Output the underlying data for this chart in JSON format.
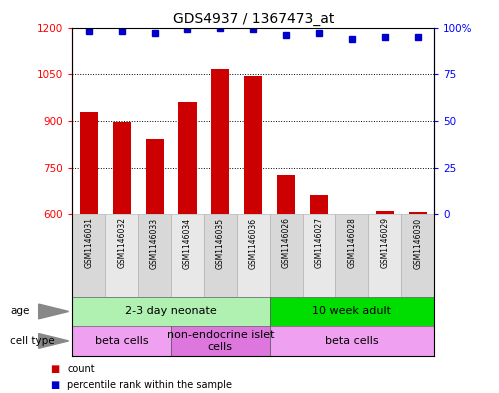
{
  "title": "GDS4937 / 1367473_at",
  "samples": [
    "GSM1146031",
    "GSM1146032",
    "GSM1146033",
    "GSM1146034",
    "GSM1146035",
    "GSM1146036",
    "GSM1146026",
    "GSM1146027",
    "GSM1146028",
    "GSM1146029",
    "GSM1146030"
  ],
  "counts": [
    930,
    897,
    843,
    960,
    1068,
    1043,
    725,
    663,
    600,
    610,
    608
  ],
  "percentiles": [
    98,
    98,
    97,
    99,
    100,
    99,
    96,
    97,
    94,
    95,
    95
  ],
  "ylim_left": [
    600,
    1200
  ],
  "ylim_right": [
    0,
    100
  ],
  "yticks_left": [
    600,
    750,
    900,
    1050,
    1200
  ],
  "yticks_right": [
    0,
    25,
    50,
    75,
    100
  ],
  "bar_color": "#cc0000",
  "dot_color": "#0000cd",
  "bar_width": 0.55,
  "age_groups": [
    {
      "label": "2-3 day neonate",
      "start": 0,
      "end": 6,
      "color": "#b0f0b0"
    },
    {
      "label": "10 week adult",
      "start": 6,
      "end": 11,
      "color": "#00dd00"
    }
  ],
  "cell_type_groups": [
    {
      "label": "beta cells",
      "start": 0,
      "end": 3,
      "color": "#f0a0f0"
    },
    {
      "label": "non-endocrine islet\ncells",
      "start": 3,
      "end": 6,
      "color": "#dd77dd"
    },
    {
      "label": "beta cells",
      "start": 6,
      "end": 11,
      "color": "#f0a0f0"
    }
  ],
  "legend_items": [
    {
      "color": "#cc0000",
      "label": "count"
    },
    {
      "color": "#0000cd",
      "label": "percentile rank within the sample"
    }
  ],
  "title_fontsize": 10,
  "tick_fontsize": 7.5,
  "sample_fontsize": 5.5,
  "label_fontsize": 7.5,
  "group_fontsize": 8
}
